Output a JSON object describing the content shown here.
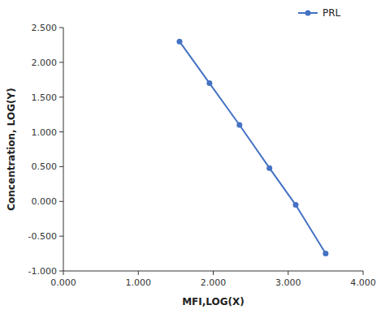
{
  "chart_data": {
    "type": "line",
    "xlabel": "MFI,LOG(X)",
    "ylabel": "Concentration, LOG(Y)",
    "x": [
      1.55,
      1.95,
      2.35,
      2.75,
      3.1,
      3.5
    ],
    "series": [
      {
        "name": "PRL",
        "color": "#4472C4",
        "marker": "circle",
        "values": [
          2.3,
          1.7,
          1.1,
          0.48,
          -0.05,
          -0.75
        ]
      }
    ],
    "xlim": [
      0.0,
      4.0
    ],
    "ylim": [
      -1.0,
      2.5
    ],
    "xticks": [
      {
        "value": 0,
        "label": "0.000"
      },
      {
        "value": 1,
        "label": "1.000"
      },
      {
        "value": 2,
        "label": "2.000"
      },
      {
        "value": 3,
        "label": "3.000"
      },
      {
        "value": 4,
        "label": "4.000"
      }
    ],
    "yticks": [
      {
        "value": -1,
        "label": "-1.000"
      },
      {
        "value": -0.5,
        "label": "-0.500"
      },
      {
        "value": 0,
        "label": "0.000"
      },
      {
        "value": 0.5,
        "label": "0.500"
      },
      {
        "value": 1,
        "label": "1.000"
      },
      {
        "value": 1.5,
        "label": "1.500"
      },
      {
        "value": 2,
        "label": "2.000"
      },
      {
        "value": 2.5,
        "label": "2.500"
      }
    ],
    "legend": "upper right",
    "grid": false
  }
}
